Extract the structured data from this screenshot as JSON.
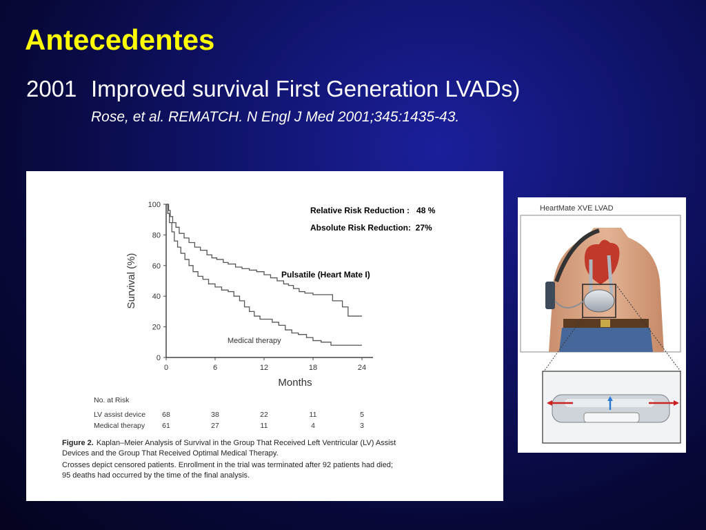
{
  "slide": {
    "title": "Antecedentes",
    "subtitle_year": "2001",
    "subtitle_text": "Improved survival First Generation LVADs)",
    "citation": "Rose, et al.  REMATCH. N Engl J Med 2001;345:1435-43."
  },
  "colors": {
    "background": "#0b0d55",
    "title": "#ffff00",
    "text": "#ffffff",
    "figure_background": "#ffffff",
    "curve": "#555555"
  },
  "chart_data": {
    "type": "line",
    "xlabel": "Months",
    "ylabel": "Survival (%)",
    "xlim": [
      0,
      24
    ],
    "ylim": [
      0,
      100
    ],
    "x_ticks": [
      0,
      6,
      12,
      18,
      24
    ],
    "y_ticks": [
      0,
      20,
      40,
      60,
      80,
      100
    ],
    "grid": false,
    "series": [
      {
        "name": "Pulsatile (Heart Mate I)",
        "x": [
          0,
          0.3,
          0.5,
          0.8,
          1.2,
          1.6,
          2.2,
          2.8,
          3.5,
          4.2,
          5.0,
          5.6,
          6.2,
          7.0,
          7.6,
          8.5,
          9.3,
          10.2,
          11.1,
          12.0,
          12.8,
          13.6,
          14.4,
          15.0,
          15.6,
          16.3,
          17.0,
          18.0,
          19.0,
          20.4,
          21.6,
          22.3,
          24.0
        ],
        "y": [
          100,
          96,
          92,
          88,
          85,
          81,
          78,
          75,
          72,
          70,
          67,
          65,
          64,
          62,
          61,
          59,
          58,
          57,
          56,
          54,
          52,
          50,
          48,
          47,
          45,
          43,
          42,
          41,
          41,
          37,
          33,
          27,
          27
        ]
      },
      {
        "name": "Medical therapy",
        "x": [
          0,
          0.2,
          0.4,
          0.7,
          1.0,
          1.4,
          1.8,
          2.3,
          2.8,
          3.3,
          3.9,
          4.5,
          5.2,
          6.0,
          6.8,
          7.6,
          8.3,
          9.0,
          9.6,
          10.2,
          10.8,
          11.5,
          12.2,
          13.0,
          13.8,
          14.6,
          15.4,
          16.2,
          17.2,
          18.0,
          19.0,
          20.2,
          22.8,
          24.0
        ],
        "y": [
          100,
          94,
          88,
          82,
          76,
          72,
          68,
          64,
          60,
          56,
          53,
          51,
          48,
          46,
          44,
          43,
          40,
          37,
          33,
          30,
          27,
          25,
          25,
          23,
          21,
          18,
          16,
          15,
          13,
          11,
          10,
          8,
          8,
          8
        ]
      }
    ],
    "curve_labels": {
      "device": "Pulsatile (Heart Mate I)",
      "medical": "Medical therapy"
    },
    "stats": [
      "Relative Risk Reduction :   48 %",
      "Absolute Risk Reduction:  27%"
    ],
    "at_risk": {
      "header": "No. at Risk",
      "rows": [
        {
          "label": "LV assist device",
          "values": [
            "68",
            "38",
            "22",
            "11",
            "5"
          ]
        },
        {
          "label": "Medical therapy",
          "values": [
            "61",
            "27",
            "11",
            "4",
            "3"
          ]
        }
      ]
    },
    "caption": {
      "label": "Figure 2.",
      "line1": "Kaplan–Meier Analysis of Survival in the Group That Received Left Ventricular (LV) Assist",
      "line2": "Devices and the Group That Received Optimal Medical Therapy.",
      "line3": "Crosses depict censored patients. Enrollment in the trial was terminated after 92 patients had died;",
      "line4": "95 deaths had occurred by the time of the final analysis."
    }
  },
  "device_image": {
    "title": "HeartMate XVE LVAD"
  }
}
